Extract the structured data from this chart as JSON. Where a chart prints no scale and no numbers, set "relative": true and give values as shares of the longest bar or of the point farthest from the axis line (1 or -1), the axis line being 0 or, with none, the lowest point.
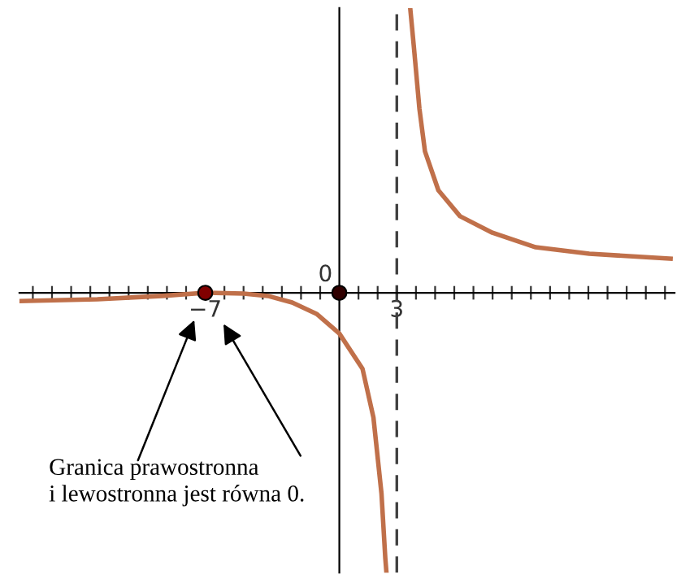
{
  "chart_data": {
    "type": "line",
    "relative": true,
    "series": [
      {
        "color": "#c0704a",
        "x": [
          -16.69,
          -12.63,
          -9.24,
          -7,
          -5.0,
          -3.73,
          -2.46,
          -1.19,
          0,
          1.21,
          1.78,
          2.2,
          2.4,
          2.46
        ],
        "values": [
          -0.029,
          -0.023,
          -0.011,
          0,
          -0.003,
          -0.011,
          -0.034,
          -0.074,
          -0.143,
          -0.267,
          -0.438,
          -0.705,
          -0.933,
          -0.983
        ]
      },
      {
        "color": "#c0704a",
        "x": [
          3.7,
          3.9,
          4.18,
          4.47,
          5.17,
          6.3,
          7.99,
          10.25,
          13.05,
          17.29
        ],
        "values": [
          1.0,
          0.857,
          0.647,
          0.497,
          0.36,
          0.269,
          0.211,
          0.16,
          0.137,
          0.12
        ]
      },
      {
        "type": "scatter",
        "x": [
          -7,
          0
        ],
        "values": [
          0,
          0
        ],
        "colors": [
          "#800000",
          "#300000"
        ]
      }
    ],
    "xlim": [
      -16.7,
      17.5
    ],
    "xticks": [
      {
        "value": -16,
        "label": null
      },
      {
        "value": -15,
        "label": null
      },
      {
        "value": -14,
        "label": null
      },
      {
        "value": -13,
        "label": null
      },
      {
        "value": -12,
        "label": null
      },
      {
        "value": -11,
        "label": null
      },
      {
        "value": -10,
        "label": null
      },
      {
        "value": -9,
        "label": null
      },
      {
        "value": -8,
        "label": null
      },
      {
        "value": -7,
        "label": "−7"
      },
      {
        "value": -6,
        "label": null
      },
      {
        "value": -5,
        "label": null
      },
      {
        "value": -4,
        "label": null
      },
      {
        "value": -3,
        "label": null
      },
      {
        "value": -2,
        "label": null
      },
      {
        "value": -1,
        "label": null
      },
      {
        "value": 1,
        "label": null
      },
      {
        "value": 2,
        "label": null
      },
      {
        "value": 3,
        "label": "3"
      },
      {
        "value": 4,
        "label": null
      },
      {
        "value": 5,
        "label": null
      },
      {
        "value": 6,
        "label": null
      },
      {
        "value": 7,
        "label": null
      },
      {
        "value": 8,
        "label": null
      },
      {
        "value": 9,
        "label": null
      },
      {
        "value": 10,
        "label": null
      },
      {
        "value": 11,
        "label": null
      },
      {
        "value": 12,
        "label": null
      },
      {
        "value": 13,
        "label": null
      },
      {
        "value": 14,
        "label": null
      },
      {
        "value": 15,
        "label": null
      },
      {
        "value": 16,
        "label": null
      },
      {
        "value": 17,
        "label": null
      }
    ],
    "ref_lines": [
      {
        "axis": "x",
        "value": 3,
        "color": "#404040",
        "line_style": "dashed"
      }
    ],
    "annotations": [
      {
        "text": "0",
        "x": 0,
        "y": 0
      },
      "Granica prawostronna\ni lewostronna jest równa 0."
    ],
    "grid": false
  }
}
